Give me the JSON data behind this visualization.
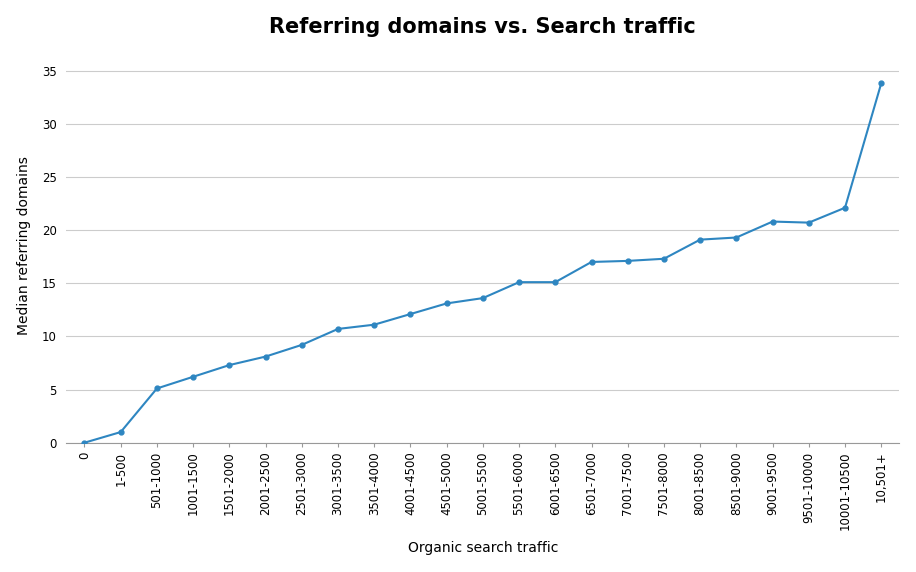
{
  "title": "Referring domains vs. Search traffic",
  "xlabel": "Organic search traffic",
  "ylabel": "Median referring domains",
  "x_labels": [
    "0",
    "1-500",
    "501-1000",
    "1001-1500",
    "1501-2000",
    "2001-2500",
    "2501-3000",
    "3001-3500",
    "3501-4000",
    "4001-4500",
    "4501-5000",
    "5001-5500",
    "5501-6000",
    "6001-6500",
    "6501-7000",
    "7001-7500",
    "7501-8000",
    "8001-8500",
    "8501-9000",
    "9001-9500",
    "9501-10000",
    "10001-10500",
    "10,501+"
  ],
  "y_values": [
    0.0,
    1.0,
    5.1,
    6.2,
    7.3,
    8.1,
    9.2,
    10.7,
    11.1,
    12.1,
    13.1,
    13.6,
    15.1,
    15.1,
    17.0,
    17.1,
    17.3,
    19.1,
    19.3,
    20.8,
    20.7,
    22.1,
    33.8
  ],
  "line_color": "#2e86c1",
  "marker_size": 3.5,
  "line_width": 1.5,
  "ylim": [
    0,
    37
  ],
  "yticks": [
    0,
    5,
    10,
    15,
    20,
    25,
    30,
    35
  ],
  "background_color": "#ffffff",
  "grid_color": "#cccccc",
  "title_fontsize": 15,
  "label_fontsize": 10,
  "tick_fontsize": 8.5
}
